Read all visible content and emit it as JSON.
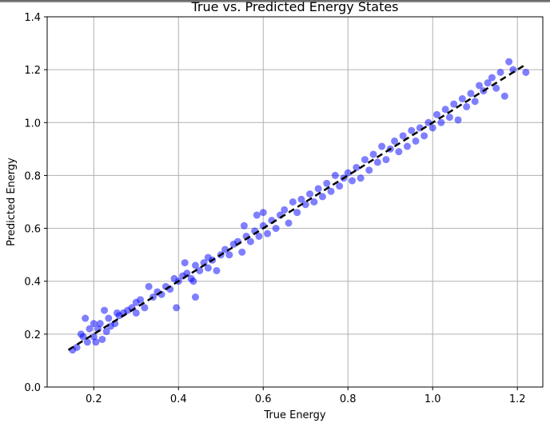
{
  "chart_data": {
    "type": "scatter",
    "title": "True vs. Predicted Energy States",
    "xlabel": "True Energy",
    "ylabel": "Predicted Energy",
    "xlim": [
      0.09,
      1.26
    ],
    "ylim": [
      0.0,
      1.4
    ],
    "xticks": [
      "0.2",
      "0.4",
      "0.6",
      "0.8",
      "1.0",
      "1.2"
    ],
    "yticks": [
      "0.0",
      "0.2",
      "0.4",
      "0.6",
      "0.8",
      "1.0",
      "1.2",
      "1.4"
    ],
    "grid": true,
    "legend": "none",
    "point_color": "#0000ff",
    "point_alpha": 0.5,
    "reference_line": {
      "style": "dashed",
      "color": "#000000",
      "from": [
        0.14,
        0.14
      ],
      "to": [
        1.22,
        1.22
      ]
    },
    "series": [
      {
        "points": [
          [
            0.15,
            0.14
          ],
          [
            0.16,
            0.15
          ],
          [
            0.17,
            0.2
          ],
          [
            0.175,
            0.19
          ],
          [
            0.18,
            0.26
          ],
          [
            0.185,
            0.17
          ],
          [
            0.19,
            0.22
          ],
          [
            0.2,
            0.19
          ],
          [
            0.2,
            0.24
          ],
          [
            0.205,
            0.17
          ],
          [
            0.21,
            0.22
          ],
          [
            0.215,
            0.24
          ],
          [
            0.22,
            0.18
          ],
          [
            0.225,
            0.29
          ],
          [
            0.23,
            0.21
          ],
          [
            0.235,
            0.26
          ],
          [
            0.24,
            0.23
          ],
          [
            0.25,
            0.24
          ],
          [
            0.255,
            0.28
          ],
          [
            0.26,
            0.27
          ],
          [
            0.27,
            0.28
          ],
          [
            0.28,
            0.29
          ],
          [
            0.29,
            0.3
          ],
          [
            0.3,
            0.28
          ],
          [
            0.3,
            0.32
          ],
          [
            0.31,
            0.33
          ],
          [
            0.32,
            0.3
          ],
          [
            0.33,
            0.38
          ],
          [
            0.34,
            0.34
          ],
          [
            0.35,
            0.36
          ],
          [
            0.36,
            0.35
          ],
          [
            0.37,
            0.38
          ],
          [
            0.38,
            0.37
          ],
          [
            0.39,
            0.41
          ],
          [
            0.395,
            0.3
          ],
          [
            0.4,
            0.4
          ],
          [
            0.41,
            0.42
          ],
          [
            0.415,
            0.47
          ],
          [
            0.42,
            0.43
          ],
          [
            0.43,
            0.41
          ],
          [
            0.435,
            0.4
          ],
          [
            0.44,
            0.34
          ],
          [
            0.44,
            0.46
          ],
          [
            0.45,
            0.44
          ],
          [
            0.46,
            0.47
          ],
          [
            0.47,
            0.45
          ],
          [
            0.47,
            0.49
          ],
          [
            0.48,
            0.48
          ],
          [
            0.49,
            0.44
          ],
          [
            0.5,
            0.5
          ],
          [
            0.51,
            0.52
          ],
          [
            0.52,
            0.5
          ],
          [
            0.53,
            0.54
          ],
          [
            0.54,
            0.55
          ],
          [
            0.55,
            0.51
          ],
          [
            0.555,
            0.61
          ],
          [
            0.56,
            0.57
          ],
          [
            0.57,
            0.55
          ],
          [
            0.58,
            0.59
          ],
          [
            0.585,
            0.65
          ],
          [
            0.59,
            0.57
          ],
          [
            0.6,
            0.61
          ],
          [
            0.6,
            0.66
          ],
          [
            0.61,
            0.58
          ],
          [
            0.62,
            0.63
          ],
          [
            0.63,
            0.6
          ],
          [
            0.64,
            0.65
          ],
          [
            0.65,
            0.67
          ],
          [
            0.66,
            0.62
          ],
          [
            0.67,
            0.7
          ],
          [
            0.68,
            0.66
          ],
          [
            0.69,
            0.71
          ],
          [
            0.7,
            0.69
          ],
          [
            0.71,
            0.73
          ],
          [
            0.72,
            0.7
          ],
          [
            0.73,
            0.75
          ],
          [
            0.74,
            0.72
          ],
          [
            0.75,
            0.77
          ],
          [
            0.76,
            0.74
          ],
          [
            0.77,
            0.8
          ],
          [
            0.78,
            0.76
          ],
          [
            0.79,
            0.79
          ],
          [
            0.8,
            0.81
          ],
          [
            0.81,
            0.78
          ],
          [
            0.82,
            0.83
          ],
          [
            0.83,
            0.79
          ],
          [
            0.84,
            0.86
          ],
          [
            0.85,
            0.82
          ],
          [
            0.86,
            0.88
          ],
          [
            0.87,
            0.85
          ],
          [
            0.88,
            0.91
          ],
          [
            0.89,
            0.86
          ],
          [
            0.9,
            0.9
          ],
          [
            0.91,
            0.93
          ],
          [
            0.92,
            0.89
          ],
          [
            0.93,
            0.95
          ],
          [
            0.94,
            0.91
          ],
          [
            0.95,
            0.97
          ],
          [
            0.96,
            0.93
          ],
          [
            0.97,
            0.98
          ],
          [
            0.98,
            0.95
          ],
          [
            0.99,
            1.0
          ],
          [
            1.0,
            0.98
          ],
          [
            1.01,
            1.03
          ],
          [
            1.02,
            1.0
          ],
          [
            1.03,
            1.05
          ],
          [
            1.04,
            1.02
          ],
          [
            1.05,
            1.07
          ],
          [
            1.06,
            1.01
          ],
          [
            1.07,
            1.09
          ],
          [
            1.08,
            1.06
          ],
          [
            1.09,
            1.11
          ],
          [
            1.1,
            1.08
          ],
          [
            1.11,
            1.14
          ],
          [
            1.12,
            1.12
          ],
          [
            1.13,
            1.15
          ],
          [
            1.14,
            1.17
          ],
          [
            1.15,
            1.13
          ],
          [
            1.16,
            1.19
          ],
          [
            1.17,
            1.1
          ],
          [
            1.18,
            1.23
          ],
          [
            1.19,
            1.2
          ],
          [
            1.22,
            1.19
          ]
        ]
      }
    ]
  }
}
